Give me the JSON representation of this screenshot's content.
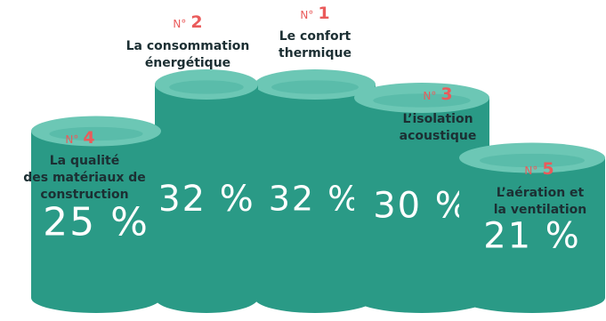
{
  "chart_data": {
    "type": "bar",
    "categories": [
      "La qualité des matériaux de construction",
      "La consommation énergétique",
      "Le confort thermique",
      "L’isolation acoustique",
      "L’aération et la ventilation"
    ],
    "values": [
      25,
      32,
      32,
      30,
      21
    ],
    "value_labels": [
      "25 %",
      "32 %",
      "32 %",
      "30 %",
      "21 %"
    ],
    "ranks": [
      "4",
      "2",
      "1",
      "3",
      "5"
    ],
    "rank_prefix": "N°",
    "label_lines": [
      [
        "La qualité",
        "des matériaux de",
        "construction"
      ],
      [
        "La consommation",
        "énergétique"
      ],
      [
        "Le confort",
        "thermique"
      ],
      [
        "L’isolation",
        "acoustique"
      ],
      [
        "L’aération et",
        "la ventilation"
      ]
    ],
    "colors": {
      "side": "#2a9a86",
      "top": "#6cc7b5",
      "top_inner": "#3aa994",
      "rank": "#ea5b5b",
      "label": "#1c2f33",
      "value_text": "#ffffff"
    }
  }
}
